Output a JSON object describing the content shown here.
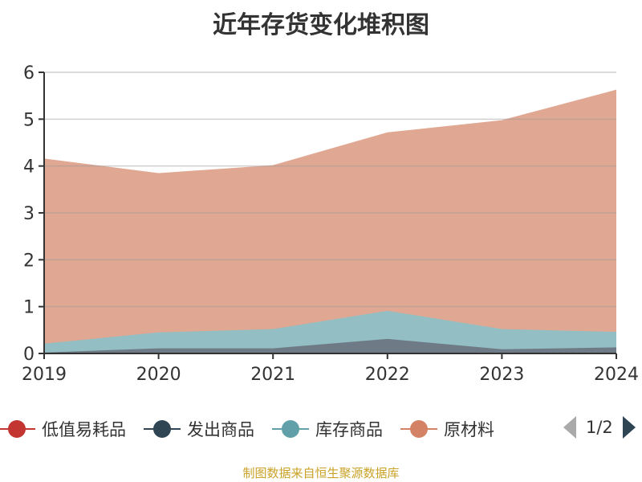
{
  "chart_data": {
    "type": "area",
    "stacked": true,
    "title": "近年存货变化堆积图",
    "categories": [
      "2019",
      "2020",
      "2021",
      "2022",
      "2023",
      "2024"
    ],
    "ylim": [
      0,
      6
    ],
    "yticks": [
      "0",
      "1",
      "2",
      "3",
      "4",
      "5",
      "6"
    ],
    "grid": true,
    "legend_position": "bottom",
    "series": [
      {
        "name": "低值易耗品",
        "color": "#c23531",
        "values": [
          0,
          0,
          0,
          0,
          0,
          0
        ]
      },
      {
        "name": "发出商品",
        "color": "#2f4554",
        "values": [
          0.02,
          0.11,
          0.11,
          0.31,
          0.09,
          0.13
        ]
      },
      {
        "name": "库存商品",
        "color": "#61a0a8",
        "values": [
          0.19,
          0.34,
          0.41,
          0.6,
          0.43,
          0.33
        ]
      },
      {
        "name": "原材料",
        "color": "#d48265",
        "values": [
          3.94,
          3.39,
          3.49,
          3.8,
          4.45,
          5.16
        ]
      }
    ]
  },
  "legend": {
    "page": "1/2"
  },
  "footer": "制图数据来自恒生聚源数据库"
}
